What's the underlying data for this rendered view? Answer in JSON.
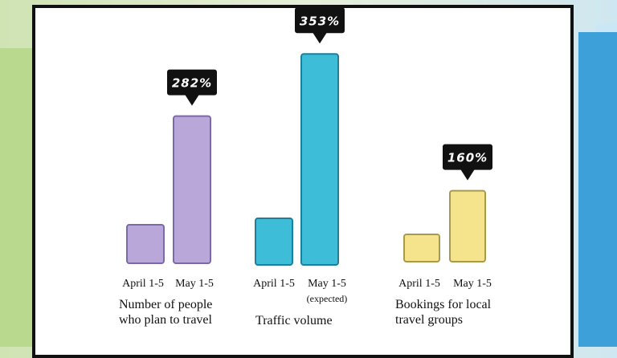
{
  "chart_data": {
    "type": "bar",
    "categories": [
      "April 1-5",
      "May 1-5"
    ],
    "groups": [
      {
        "title": "Number of people who plan to travel",
        "title_lines": [
          "Number of people",
          "who plan to travel"
        ],
        "labels": [
          "April 1-5",
          "May 1-5"
        ],
        "sublabels": [
          "",
          ""
        ],
        "values": [
          1,
          3.82
        ],
        "increase_label": "282%",
        "color": "#b9a7d9",
        "border": "#7c6aa8"
      },
      {
        "title": "Traffic volume",
        "title_lines": [
          "Traffic volume"
        ],
        "labels": [
          "April 1-5",
          "May 1-5"
        ],
        "sublabels": [
          "",
          "(expected)"
        ],
        "values": [
          1,
          4.53
        ],
        "increase_label": "353%",
        "color": "#3dbdd8",
        "border": "#1d7f99"
      },
      {
        "title": "Bookings for local travel groups",
        "title_lines": [
          "Bookings for local",
          "travel groups"
        ],
        "labels": [
          "April 1-5",
          "May 1-5"
        ],
        "sublabels": [
          "",
          ""
        ],
        "values": [
          1,
          2.6
        ],
        "increase_label": "160%",
        "color": "#f6e48c",
        "border": "#a89a4a"
      }
    ],
    "grid": false,
    "legend": "none"
  }
}
